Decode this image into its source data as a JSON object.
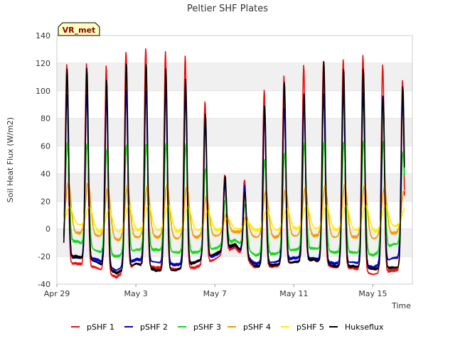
{
  "chart_data": {
    "type": "line",
    "title": "Peltier SHF Plates",
    "xlabel": "Time",
    "ylabel": "Soil Heat Flux (W/m2)",
    "station_tag": "VR_met",
    "ylim": [
      -40,
      140
    ],
    "yticks": [
      -40,
      -20,
      0,
      20,
      40,
      60,
      80,
      100,
      120,
      140
    ],
    "xlim": [
      "2024-04-29",
      "2024-05-17"
    ],
    "xticks": [
      {
        "date": "2024-04-29",
        "label": "Apr 29"
      },
      {
        "date": "2024-05-03",
        "label": "May 3"
      },
      {
        "date": "2024-05-07",
        "label": "May 7"
      },
      {
        "date": "2024-05-11",
        "label": "May 11"
      },
      {
        "date": "2024-05-15",
        "label": "May 15"
      }
    ],
    "grid": "horizontal bands",
    "legend_position": "bottom",
    "days": [
      "2024-04-29",
      "2024-04-30",
      "2024-05-01",
      "2024-05-02",
      "2024-05-03",
      "2024-05-04",
      "2024-05-05",
      "2024-05-06",
      "2024-05-07",
      "2024-05-08",
      "2024-05-09",
      "2024-05-10",
      "2024-05-11",
      "2024-05-12",
      "2024-05-13",
      "2024-05-14",
      "2024-05-15",
      "2024-05-16"
    ],
    "series": [
      {
        "name": "pSHF 1",
        "color": "#ee1111",
        "daily_max": [
          null,
          119,
          118,
          129,
          131,
          128,
          125,
          92,
          39,
          36,
          101,
          110,
          118,
          122,
          123,
          126,
          119,
          107
        ],
        "daily_min": [
          null,
          -25,
          -28,
          -35,
          -25,
          -28,
          -29,
          -28,
          -22,
          -13,
          -28,
          -27,
          -24,
          -22,
          -28,
          -28,
          -33,
          -30
        ]
      },
      {
        "name": "pSHF 2",
        "color": "#0000cc",
        "daily_max": [
          null,
          98,
          96,
          100,
          100,
          101,
          98,
          75,
          33,
          31,
          85,
          88,
          95,
          98,
          100,
          98,
          97,
          95
        ],
        "daily_min": [
          null,
          -21,
          -22,
          -30,
          -22,
          -24,
          -26,
          -24,
          -19,
          -12,
          -25,
          -24,
          -21,
          -21,
          -25,
          -24,
          -28,
          -21
        ]
      },
      {
        "name": "pSHF 3",
        "color": "#11dd11",
        "daily_max": [
          null,
          62,
          58,
          61,
          61,
          62,
          61,
          44,
          21,
          18,
          50,
          55,
          62,
          63,
          63,
          64,
          63,
          56
        ],
        "daily_min": [
          null,
          -9,
          -16,
          -20,
          -15,
          -15,
          -17,
          -17,
          -14,
          -8,
          -19,
          -18,
          -15,
          -14,
          -17,
          -17,
          -19,
          -11
        ]
      },
      {
        "name": "pSHF 4",
        "color": "#ff9900",
        "daily_max": [
          null,
          34,
          30,
          31,
          31,
          32,
          31,
          24,
          11,
          9,
          28,
          29,
          30,
          31,
          32,
          32,
          30,
          28
        ],
        "daily_min": [
          null,
          -3,
          -5,
          -8,
          -6,
          -6,
          -7,
          -6,
          -5,
          -2,
          -6,
          -6,
          -5,
          -5,
          -6,
          -6,
          -7,
          -3
        ]
      },
      {
        "name": "pSHF 5",
        "color": "#ffee00",
        "daily_max": [
          null,
          16,
          14,
          17,
          17,
          17,
          16,
          13,
          8,
          5,
          14,
          15,
          17,
          17,
          17,
          17,
          17,
          15
        ],
        "daily_min": [
          null,
          3,
          -2,
          -2,
          -1,
          -1,
          -2,
          -1,
          -1,
          0,
          -1,
          -1,
          0,
          0,
          -1,
          -1,
          -2,
          2
        ]
      },
      {
        "name": "Hukseflux",
        "color": "#000000",
        "daily_max": [
          null,
          116,
          107,
          120,
          120,
          116,
          108,
          83,
          38,
          27,
          90,
          106,
          97,
          121,
          116,
          116,
          96,
          103
        ],
        "daily_min": [
          null,
          -20,
          -24,
          -32,
          -25,
          -30,
          -30,
          -24,
          -18,
          -11,
          -27,
          -26,
          -24,
          -22,
          -27,
          -27,
          -29,
          -28
        ]
      }
    ]
  }
}
